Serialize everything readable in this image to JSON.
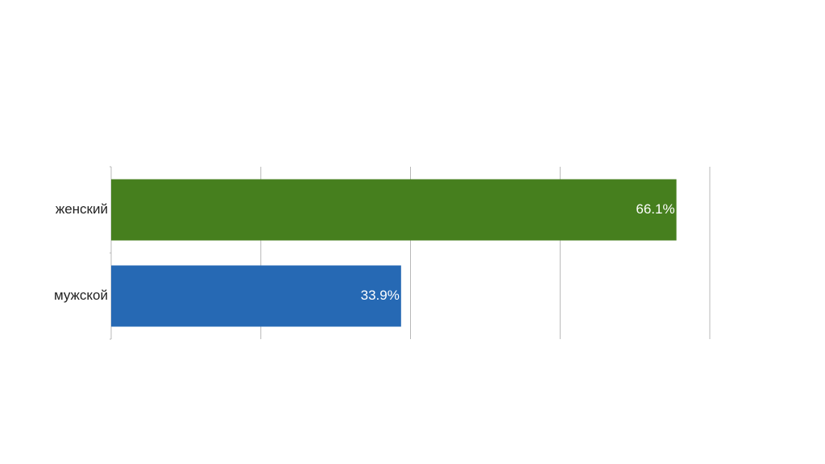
{
  "chart_data": {
    "type": "hbar",
    "categories": [
      "женский",
      "мужской"
    ],
    "values": [
      66.1,
      33.9
    ],
    "value_labels": [
      "66.1%",
      "33.9%"
    ],
    "colors": [
      "#467f1e",
      "#2669b4"
    ],
    "xlim": [
      0,
      70
    ],
    "xticks": [
      0,
      17.5,
      35,
      52.5,
      70
    ],
    "grid": true
  }
}
